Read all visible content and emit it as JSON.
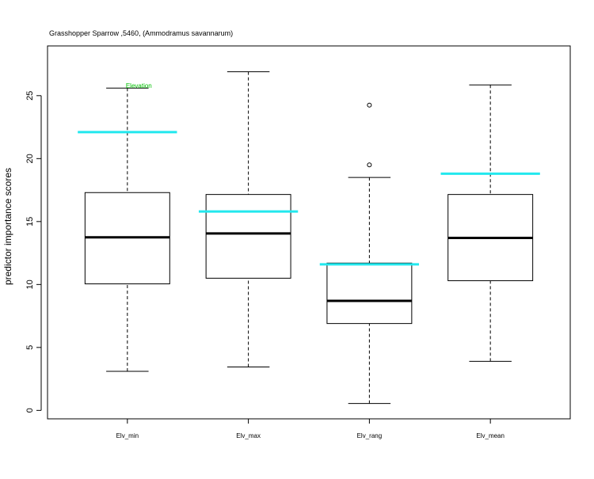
{
  "chart_data": {
    "type": "boxplot",
    "title": "Grasshopper Sparrow ,5460, (Ammodramus savannarum)",
    "y_label": "predictor importance scores",
    "annotation": "Elevation",
    "annotation_color": "#00c000",
    "categories": [
      "Elv_min",
      "Elv_max",
      "Elv_rang",
      "Elv_mean"
    ],
    "boxes": [
      {
        "min": 3.1,
        "q1": 10.05,
        "median": 13.75,
        "q3": 17.3,
        "max": 25.6,
        "outliers": []
      },
      {
        "min": 3.45,
        "q1": 10.5,
        "median": 14.05,
        "q3": 17.15,
        "max": 26.9,
        "outliers": []
      },
      {
        "min": 0.55,
        "q1": 6.9,
        "median": 8.7,
        "q3": 11.7,
        "max": 18.5,
        "outliers": [
          19.5,
          24.25
        ]
      },
      {
        "min": 3.9,
        "q1": 10.3,
        "median": 13.7,
        "q3": 17.15,
        "max": 25.85,
        "outliers": []
      }
    ],
    "reference_values": [
      22.1,
      15.8,
      11.6,
      18.8
    ],
    "reference_color": "#22e8ee",
    "ylim": [
      -0.67,
      28.95
    ],
    "yticks": [
      0,
      5,
      10,
      15,
      20,
      25
    ]
  }
}
